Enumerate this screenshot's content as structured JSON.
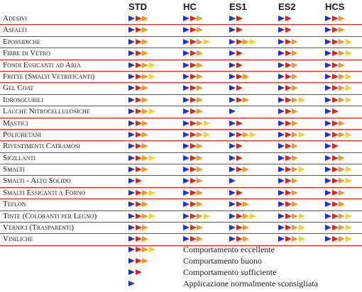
{
  "columns": [
    "STD",
    "HC",
    "ES1",
    "ES2",
    "HCS"
  ],
  "rows": [
    {
      "label": "Adesivi",
      "ratings": [
        3,
        3,
        2,
        2,
        3
      ]
    },
    {
      "label": "Asfalti",
      "ratings": [
        3,
        3,
        2,
        2,
        3
      ]
    },
    {
      "label": "Epossidiche",
      "ratings": [
        3,
        4,
        4,
        3,
        4
      ]
    },
    {
      "label": "Fibre di Vetro",
      "ratings": [
        3,
        3,
        2,
        3,
        4
      ]
    },
    {
      "label": "Fondi Essicanti ad Aria",
      "ratings": [
        4,
        3,
        2,
        3,
        3
      ]
    },
    {
      "label": "Fritte (Smalti Vetrificanti)",
      "ratings": [
        4,
        3,
        3,
        3,
        4
      ]
    },
    {
      "label": "Gel Coat",
      "ratings": [
        3,
        3,
        2,
        3,
        4
      ]
    },
    {
      "label": "Idrosolubili",
      "ratings": [
        3,
        3,
        3,
        4,
        4
      ]
    },
    {
      "label": "Lacche Nitrocellulosiche",
      "ratings": [
        4,
        3,
        1,
        3,
        2
      ]
    },
    {
      "label": "Mastici",
      "ratings": [
        3,
        4,
        2,
        3,
        3
      ]
    },
    {
      "label": "Poliuretani",
      "ratings": [
        3,
        4,
        4,
        4,
        4
      ]
    },
    {
      "label": "Rivestimenti Catramosi",
      "ratings": [
        3,
        3,
        2,
        3,
        2
      ]
    },
    {
      "label": "Sigillanti",
      "ratings": [
        4,
        3,
        2,
        3,
        3
      ]
    },
    {
      "label": "Smalti",
      "ratings": [
        3,
        3,
        3,
        4,
        4
      ]
    },
    {
      "label": "Smalti - Alto Solido",
      "ratings": [
        2,
        3,
        1,
        3,
        4
      ]
    },
    {
      "label": "Smalti Essicanti a Forno",
      "ratings": [
        4,
        3,
        2,
        3,
        3
      ]
    },
    {
      "label": "Teflon",
      "ratings": [
        3,
        3,
        3,
        3,
        3
      ]
    },
    {
      "label": "Tinte (Coloranti per Legno)",
      "ratings": [
        4,
        4,
        4,
        4,
        4
      ]
    },
    {
      "label": "Vernici (Trasparenti)",
      "ratings": [
        3,
        3,
        3,
        4,
        4
      ]
    },
    {
      "label": "Viniliche",
      "ratings": [
        3,
        3,
        3,
        4,
        4
      ]
    }
  ],
  "legend": [
    {
      "rating": 4,
      "label": "Comportamento eccellente"
    },
    {
      "rating": 3,
      "label": "Comportamento buono"
    },
    {
      "rating": 2,
      "label": "Comportamento sufficiente"
    },
    {
      "rating": 1,
      "label": "Applicazione normalmente sconsigliata"
    }
  ],
  "colors": {
    "arrow_1": "#1f2fd6",
    "arrow_2": "#e2231a",
    "arrow_3": "#f39a1c",
    "arrow_4": "#f4d21f",
    "row_rule": "#d9261c"
  }
}
